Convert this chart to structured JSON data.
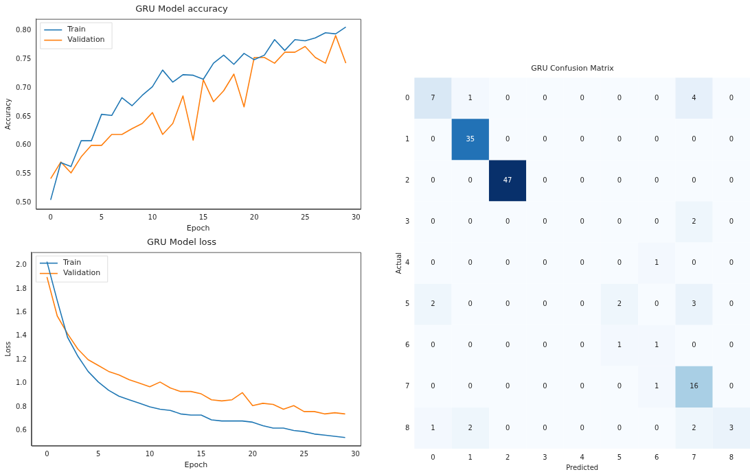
{
  "chart_data": [
    {
      "type": "line",
      "title": "GRU Model accuracy",
      "xlabel": "Epoch",
      "ylabel": "Accuracy",
      "x": [
        0,
        1,
        2,
        3,
        4,
        5,
        6,
        7,
        8,
        9,
        10,
        11,
        12,
        13,
        14,
        15,
        16,
        17,
        18,
        19,
        20,
        21,
        22,
        23,
        24,
        25,
        26,
        27,
        28,
        29
      ],
      "xlim": [
        -1.45,
        30.45
      ],
      "xticks": [
        0,
        5,
        10,
        15,
        20,
        25,
        30
      ],
      "ylim": [
        0.489,
        0.82
      ],
      "yticks": [
        {
          "value": 0.5,
          "label": "0.50"
        },
        {
          "value": 0.55,
          "label": "0.55"
        },
        {
          "value": 0.6,
          "label": "0.60"
        },
        {
          "value": 0.65,
          "label": "0.65"
        },
        {
          "value": 0.7,
          "label": "0.70"
        },
        {
          "value": 0.75,
          "label": "0.75"
        },
        {
          "value": 0.8,
          "label": "0.80"
        }
      ],
      "grid": false,
      "legend": "top left",
      "marker": "none",
      "line_style": "solid",
      "series": [
        {
          "name": "Train",
          "color": "#1f77b4",
          "values": [
            0.505,
            0.57,
            0.563,
            0.608,
            0.608,
            0.654,
            0.652,
            0.683,
            0.669,
            0.687,
            0.702,
            0.731,
            0.71,
            0.723,
            0.722,
            0.715,
            0.743,
            0.757,
            0.741,
            0.76,
            0.749,
            0.757,
            0.784,
            0.765,
            0.784,
            0.782,
            0.787,
            0.796,
            0.794,
            0.806
          ]
        },
        {
          "name": "Validation",
          "color": "#ff7f0e",
          "values": [
            0.542,
            0.571,
            0.552,
            0.58,
            0.6,
            0.6,
            0.619,
            0.619,
            0.629,
            0.638,
            0.657,
            0.619,
            0.638,
            0.686,
            0.609,
            0.714,
            0.676,
            0.695,
            0.724,
            0.667,
            0.753,
            0.753,
            0.743,
            0.762,
            0.762,
            0.772,
            0.753,
            0.743,
            0.791,
            0.743
          ]
        }
      ]
    },
    {
      "type": "line",
      "title": "GRU Model loss",
      "xlabel": "Epoch",
      "ylabel": "Loss",
      "x": [
        0,
        1,
        2,
        3,
        4,
        5,
        6,
        7,
        8,
        9,
        10,
        11,
        12,
        13,
        14,
        15,
        16,
        17,
        18,
        19,
        20,
        21,
        22,
        23,
        24,
        25,
        26,
        27,
        28,
        29
      ],
      "xlim": [
        -1.5,
        30.5
      ],
      "xticks": [
        0,
        5,
        10,
        15,
        20,
        25,
        30
      ],
      "ylim": [
        0.47,
        2.11
      ],
      "yticks": [
        {
          "value": 0.6,
          "label": "0.6"
        },
        {
          "value": 0.8,
          "label": "0.8"
        },
        {
          "value": 1.0,
          "label": "1.0"
        },
        {
          "value": 1.2,
          "label": "1.2"
        },
        {
          "value": 1.4,
          "label": "1.4"
        },
        {
          "value": 1.6,
          "label": "1.6"
        },
        {
          "value": 1.8,
          "label": "1.8"
        },
        {
          "value": 2.0,
          "label": "2.0"
        }
      ],
      "grid": false,
      "legend": "top left",
      "marker": "none",
      "line_style": "solid",
      "series": [
        {
          "name": "Train",
          "color": "#1f77b4",
          "values": [
            2.03,
            1.7,
            1.39,
            1.23,
            1.1,
            1.01,
            0.94,
            0.89,
            0.86,
            0.83,
            0.8,
            0.78,
            0.77,
            0.74,
            0.73,
            0.73,
            0.69,
            0.68,
            0.68,
            0.68,
            0.67,
            0.64,
            0.62,
            0.62,
            0.6,
            0.59,
            0.57,
            0.56,
            0.55,
            0.54
          ]
        },
        {
          "name": "Validation",
          "color": "#ff7f0e",
          "values": [
            1.9,
            1.57,
            1.42,
            1.29,
            1.2,
            1.15,
            1.1,
            1.07,
            1.03,
            1.0,
            0.97,
            1.01,
            0.96,
            0.93,
            0.93,
            0.91,
            0.86,
            0.85,
            0.86,
            0.92,
            0.81,
            0.83,
            0.82,
            0.78,
            0.81,
            0.76,
            0.76,
            0.74,
            0.75,
            0.74
          ]
        }
      ]
    },
    {
      "type": "heatmap",
      "title": "GRU Confusion Matrix",
      "xlabel": "Predicted",
      "ylabel": "Actual",
      "data_labels": true,
      "categories": [
        "0",
        "1",
        "2",
        "3",
        "4",
        "5",
        "6",
        "7",
        "8"
      ],
      "y_categories": [
        "0",
        "1",
        "2",
        "3",
        "4",
        "5",
        "6",
        "7",
        "8"
      ],
      "cells": [
        [
          7,
          1,
          0,
          0,
          0,
          0,
          0,
          4,
          0
        ],
        [
          0,
          35,
          0,
          0,
          0,
          0,
          0,
          0,
          0
        ],
        [
          0,
          0,
          47,
          0,
          0,
          0,
          0,
          0,
          0
        ],
        [
          0,
          0,
          0,
          0,
          0,
          0,
          0,
          2,
          0
        ],
        [
          0,
          0,
          0,
          0,
          0,
          0,
          1,
          0,
          0
        ],
        [
          2,
          0,
          0,
          0,
          0,
          2,
          0,
          3,
          0
        ],
        [
          0,
          0,
          0,
          0,
          0,
          1,
          1,
          0,
          0
        ],
        [
          0,
          0,
          0,
          0,
          0,
          0,
          1,
          16,
          0
        ],
        [
          1,
          2,
          0,
          0,
          0,
          0,
          0,
          2,
          3
        ]
      ]
    }
  ]
}
